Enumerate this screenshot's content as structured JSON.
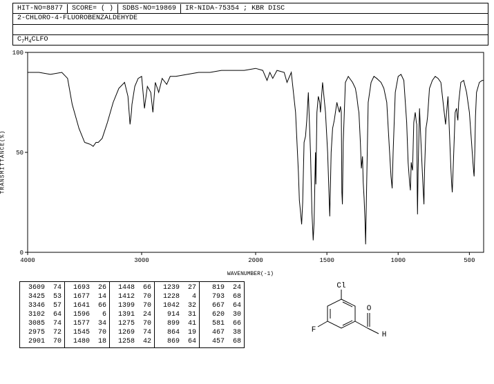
{
  "header": {
    "hit_no": "HIT-NO=8877",
    "score": "SCORE=  (  )",
    "sdbs_no": "SDBS-NO=19869",
    "spectrum_id": "IR-NIDA-75354 ; KBR DISC"
  },
  "compound_name": "2-CHLORO-4-FLUOROBENZALDEHYDE",
  "formula_parts": [
    "C",
    "7",
    "H",
    "4",
    "CLFO"
  ],
  "chart": {
    "type": "line",
    "xlabel": "WAVENUMBER(-1)",
    "ylabel": "TRANSMITTANCE(%)",
    "xlim": [
      4000,
      400
    ],
    "ylim": [
      0,
      100
    ],
    "xticks": [
      4000,
      3000,
      2000,
      1500,
      1000,
      500
    ],
    "yticks": [
      0,
      50,
      100
    ],
    "xtick_labels": [
      "4000",
      "3000",
      "2000",
      "1500",
      "1000",
      "500"
    ],
    "ytick_labels": [
      "0",
      "50",
      "100"
    ],
    "line_color": "#000000",
    "background_color": "#ffffff",
    "axis_color": "#000000",
    "font_size": 9,
    "points": [
      [
        4000,
        90
      ],
      [
        3900,
        90
      ],
      [
        3800,
        89
      ],
      [
        3700,
        90
      ],
      [
        3650,
        87
      ],
      [
        3609,
        74
      ],
      [
        3550,
        62
      ],
      [
        3500,
        55
      ],
      [
        3450,
        54
      ],
      [
        3425,
        53
      ],
      [
        3400,
        55
      ],
      [
        3380,
        55
      ],
      [
        3346,
        57
      ],
      [
        3300,
        65
      ],
      [
        3250,
        75
      ],
      [
        3200,
        82
      ],
      [
        3150,
        85
      ],
      [
        3120,
        78
      ],
      [
        3102,
        64
      ],
      [
        3090,
        70
      ],
      [
        3085,
        74
      ],
      [
        3060,
        83
      ],
      [
        3030,
        87
      ],
      [
        3000,
        88
      ],
      [
        2975,
        72
      ],
      [
        2950,
        83
      ],
      [
        2920,
        80
      ],
      [
        2901,
        70
      ],
      [
        2880,
        85
      ],
      [
        2850,
        80
      ],
      [
        2820,
        87
      ],
      [
        2780,
        84
      ],
      [
        2750,
        88
      ],
      [
        2700,
        88
      ],
      [
        2600,
        89
      ],
      [
        2500,
        90
      ],
      [
        2400,
        90
      ],
      [
        2300,
        91
      ],
      [
        2200,
        91
      ],
      [
        2100,
        91
      ],
      [
        2000,
        92
      ],
      [
        1950,
        91
      ],
      [
        1920,
        86
      ],
      [
        1900,
        90
      ],
      [
        1880,
        87
      ],
      [
        1850,
        91
      ],
      [
        1800,
        90
      ],
      [
        1780,
        85
      ],
      [
        1750,
        90
      ],
      [
        1720,
        70
      ],
      [
        1700,
        40
      ],
      [
        1693,
        26
      ],
      [
        1685,
        20
      ],
      [
        1677,
        14
      ],
      [
        1670,
        25
      ],
      [
        1660,
        55
      ],
      [
        1650,
        58
      ],
      [
        1641,
        66
      ],
      [
        1630,
        80
      ],
      [
        1615,
        50
      ],
      [
        1605,
        20
      ],
      [
        1596,
        6
      ],
      [
        1590,
        15
      ],
      [
        1580,
        50
      ],
      [
        1577,
        34
      ],
      [
        1570,
        70
      ],
      [
        1560,
        78
      ],
      [
        1550,
        75
      ],
      [
        1545,
        70
      ],
      [
        1530,
        85
      ],
      [
        1510,
        70
      ],
      [
        1495,
        50
      ],
      [
        1480,
        18
      ],
      [
        1470,
        50
      ],
      [
        1460,
        62
      ],
      [
        1448,
        66
      ],
      [
        1430,
        75
      ],
      [
        1420,
        72
      ],
      [
        1412,
        70
      ],
      [
        1405,
        73
      ],
      [
        1399,
        70
      ],
      [
        1395,
        30
      ],
      [
        1391,
        24
      ],
      [
        1385,
        55
      ],
      [
        1370,
        85
      ],
      [
        1350,
        88
      ],
      [
        1320,
        85
      ],
      [
        1300,
        82
      ],
      [
        1290,
        78
      ],
      [
        1280,
        72
      ],
      [
        1275,
        70
      ],
      [
        1265,
        55
      ],
      [
        1258,
        42
      ],
      [
        1250,
        48
      ],
      [
        1245,
        35
      ],
      [
        1239,
        27
      ],
      [
        1232,
        15
      ],
      [
        1228,
        4
      ],
      [
        1222,
        30
      ],
      [
        1210,
        75
      ],
      [
        1190,
        85
      ],
      [
        1170,
        88
      ],
      [
        1150,
        87
      ],
      [
        1120,
        85
      ],
      [
        1100,
        82
      ],
      [
        1080,
        75
      ],
      [
        1060,
        50
      ],
      [
        1050,
        38
      ],
      [
        1042,
        32
      ],
      [
        1035,
        50
      ],
      [
        1020,
        80
      ],
      [
        1000,
        88
      ],
      [
        980,
        89
      ],
      [
        960,
        86
      ],
      [
        940,
        65
      ],
      [
        930,
        45
      ],
      [
        920,
        35
      ],
      [
        914,
        31
      ],
      [
        908,
        45
      ],
      [
        902,
        42
      ],
      [
        899,
        41
      ],
      [
        890,
        65
      ],
      [
        880,
        70
      ],
      [
        872,
        65
      ],
      [
        869,
        64
      ],
      [
        866,
        30
      ],
      [
        864,
        19
      ],
      [
        860,
        40
      ],
      [
        850,
        72
      ],
      [
        840,
        55
      ],
      [
        830,
        40
      ],
      [
        822,
        28
      ],
      [
        819,
        24
      ],
      [
        815,
        40
      ],
      [
        805,
        62
      ],
      [
        798,
        65
      ],
      [
        793,
        68
      ],
      [
        780,
        82
      ],
      [
        760,
        86
      ],
      [
        740,
        88
      ],
      [
        720,
        87
      ],
      [
        700,
        85
      ],
      [
        680,
        72
      ],
      [
        667,
        64
      ],
      [
        650,
        78
      ],
      [
        640,
        60
      ],
      [
        630,
        42
      ],
      [
        625,
        35
      ],
      [
        620,
        30
      ],
      [
        615,
        40
      ],
      [
        600,
        70
      ],
      [
        590,
        72
      ],
      [
        585,
        68
      ],
      [
        581,
        66
      ],
      [
        575,
        75
      ],
      [
        560,
        85
      ],
      [
        540,
        86
      ],
      [
        520,
        80
      ],
      [
        500,
        70
      ],
      [
        485,
        55
      ],
      [
        475,
        45
      ],
      [
        470,
        40
      ],
      [
        467,
        38
      ],
      [
        462,
        50
      ],
      [
        457,
        68
      ],
      [
        450,
        80
      ],
      [
        430,
        85
      ],
      [
        410,
        86
      ],
      [
        400,
        86
      ]
    ]
  },
  "peak_table": {
    "columns": [
      [
        [
          3609,
          74
        ],
        [
          3425,
          53
        ],
        [
          3346,
          57
        ],
        [
          3102,
          64
        ],
        [
          3085,
          74
        ],
        [
          2975,
          72
        ],
        [
          2901,
          70
        ]
      ],
      [
        [
          1693,
          26
        ],
        [
          1677,
          14
        ],
        [
          1641,
          66
        ],
        [
          1596,
          6
        ],
        [
          1577,
          34
        ],
        [
          1545,
          70
        ],
        [
          1480,
          18
        ]
      ],
      [
        [
          1448,
          66
        ],
        [
          1412,
          70
        ],
        [
          1399,
          70
        ],
        [
          1391,
          24
        ],
        [
          1275,
          70
        ],
        [
          1269,
          74
        ],
        [
          1258,
          42
        ]
      ],
      [
        [
          1239,
          27
        ],
        [
          1228,
          4
        ],
        [
          1042,
          32
        ],
        [
          914,
          31
        ],
        [
          899,
          41
        ],
        [
          864,
          19
        ],
        [
          869,
          64
        ]
      ],
      [
        [
          819,
          24
        ],
        [
          793,
          68
        ],
        [
          667,
          64
        ],
        [
          620,
          30
        ],
        [
          581,
          66
        ],
        [
          467,
          38
        ],
        [
          457,
          68
        ]
      ]
    ]
  },
  "structure": {
    "atoms": {
      "cl": "Cl",
      "f": "F",
      "o": "O",
      "h": "H"
    }
  }
}
